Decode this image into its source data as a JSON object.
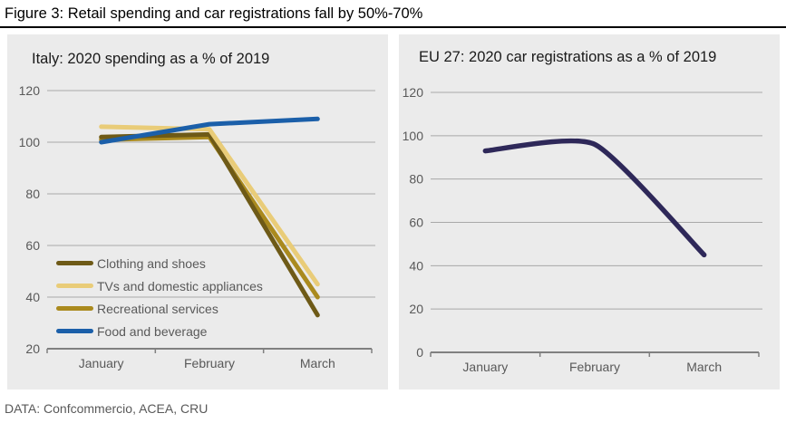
{
  "figure": {
    "title": "Figure 3: Retail spending and car registrations fall by 50%-70%",
    "source": "DATA: Confcommercio, ACEA, CRU"
  },
  "colors": {
    "panel_background": "#ebebeb",
    "gridline": "#a8a8a8",
    "axis": "#808080",
    "tick_label": "#595959"
  },
  "chart_data": [
    {
      "type": "line",
      "title": "Italy: 2020 spending as a % of 2019",
      "categories": [
        "January",
        "February",
        "March"
      ],
      "y_ticks": [
        120,
        100,
        80,
        60,
        40,
        20
      ],
      "ylim": [
        20,
        120
      ],
      "grid": true,
      "legend_position": "inside-bottom-left",
      "series": [
        {
          "name": "Clothing and shoes",
          "color": "#6e5a17",
          "z": 1,
          "values": [
            102,
            103,
            33
          ]
        },
        {
          "name": "TVs and domestic appliances",
          "color": "#e9cc78",
          "z": 2,
          "values": [
            106,
            105,
            45
          ]
        },
        {
          "name": "Recreational services",
          "color": "#aa8a1e",
          "z": 0,
          "values": [
            101,
            102,
            40
          ]
        },
        {
          "name": "Food and beverage",
          "color": "#1b5fa9",
          "z": 3,
          "values": [
            100,
            107,
            109
          ]
        }
      ]
    },
    {
      "type": "line",
      "title": "EU 27: 2020 car registrations as a % of 2019",
      "categories": [
        "January",
        "February",
        "March"
      ],
      "y_ticks": [
        120,
        100,
        80,
        60,
        40,
        20,
        0
      ],
      "ylim": [
        0,
        120
      ],
      "grid": true,
      "smooth": true,
      "legend_position": "none",
      "series": [
        {
          "name": "EU 27 car registrations",
          "color": "#2e2859",
          "z": 0,
          "values": [
            93,
            96,
            45
          ]
        }
      ]
    }
  ]
}
